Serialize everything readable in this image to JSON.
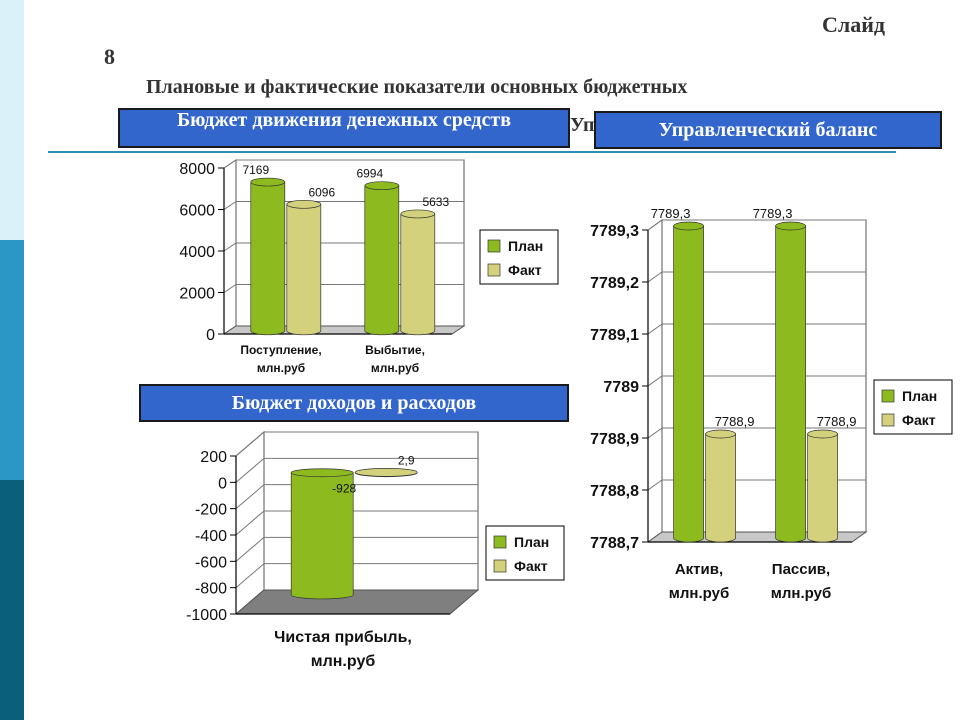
{
  "slide": {
    "label": "Слайд",
    "number": "8"
  },
  "title": "Плановые и фактические показатели основных бюджетных",
  "title_tail": "Уп",
  "bands": {
    "cash": "Бюджет движения денежных средств",
    "balance": "Управленческий баланс",
    "income": "Бюджет доходов и расходов"
  },
  "colors": {
    "plan": "#8dbb1f",
    "fact": "#d4d17c",
    "band": "#3366cc",
    "strip_dark": "#0a5f7a",
    "strip_mid": "#2b97c4",
    "strip_light": "#d9f1f7"
  },
  "chart_data": [
    {
      "id": "cash",
      "type": "bar",
      "categories": [
        "Поступление, млн.руб",
        "Выбытие, млн.руб"
      ],
      "series": [
        {
          "name": "План",
          "values": [
            7169,
            6994
          ]
        },
        {
          "name": "Факт",
          "values": [
            6096,
            5633
          ]
        }
      ],
      "value_labels": [
        [
          "7169",
          "6994"
        ],
        [
          "6096",
          "5633"
        ]
      ],
      "ylim": [
        0,
        8000
      ],
      "ticks": [
        "0",
        "2000",
        "4000",
        "6000",
        "8000"
      ],
      "legend": "right",
      "grid": true
    },
    {
      "id": "balance",
      "type": "bar",
      "categories": [
        "Актив, млн.руб",
        "Пассив, млн.руб"
      ],
      "series": [
        {
          "name": "План",
          "values": [
            7789.3,
            7789.3
          ]
        },
        {
          "name": "Факт",
          "values": [
            7788.9,
            7788.9
          ]
        }
      ],
      "value_labels": [
        [
          "7789,3",
          "7789,3"
        ],
        [
          "7788,9",
          "7788,9"
        ]
      ],
      "ylim": [
        7788.7,
        7789.3
      ],
      "ticks": [
        "7788,7",
        "7788,8",
        "7788,9",
        "7789",
        "7789,1",
        "7789,2",
        "7789,3"
      ],
      "legend": "right",
      "grid": true
    },
    {
      "id": "income",
      "type": "bar",
      "categories": [
        "Чистая прибыль, млн.руб"
      ],
      "series": [
        {
          "name": "План",
          "values": [
            -928
          ]
        },
        {
          "name": "Факт",
          "values": [
            2.9
          ]
        }
      ],
      "value_labels": [
        [
          "-928"
        ],
        [
          "2,9"
        ]
      ],
      "ylim": [
        -1000,
        200
      ],
      "ticks": [
        "-1000",
        "-800",
        "-600",
        "-400",
        "-200",
        "0",
        "200"
      ],
      "legend": "right",
      "grid": true
    }
  ]
}
